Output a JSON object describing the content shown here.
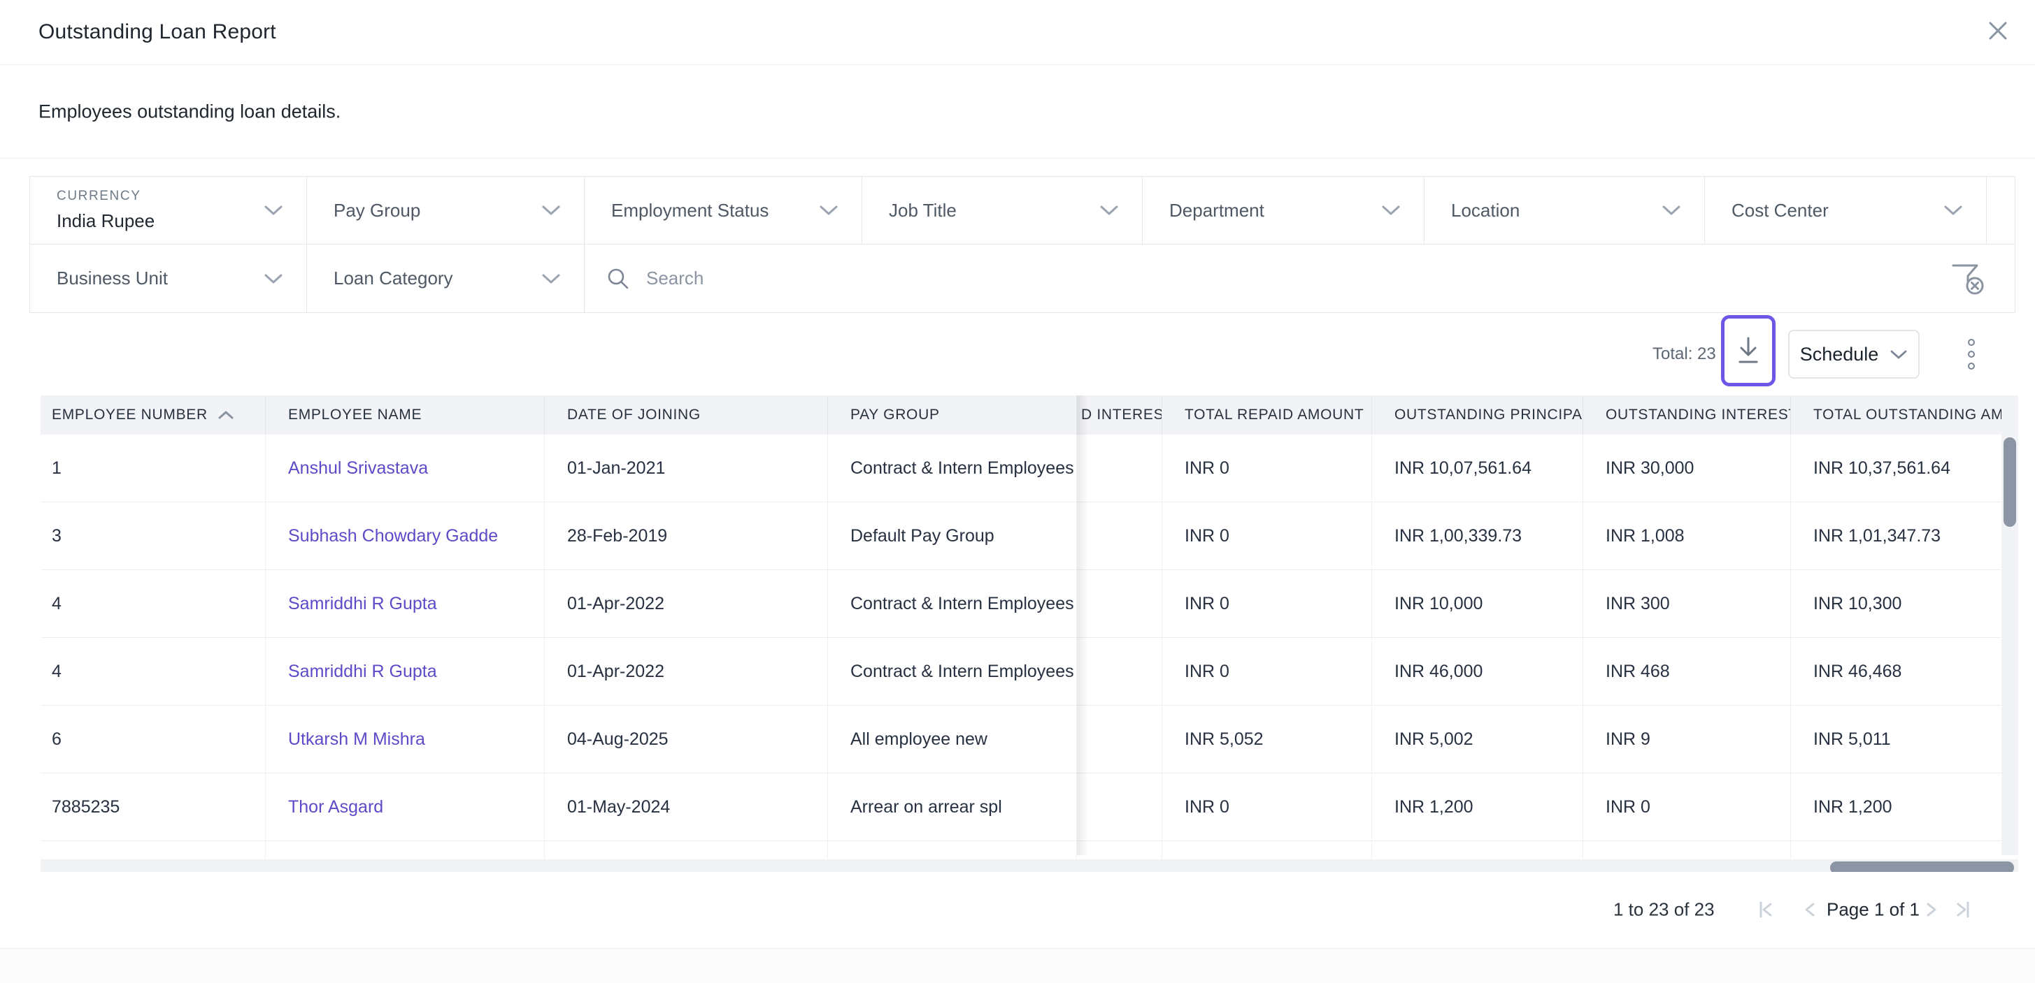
{
  "modal": {
    "title": "Outstanding Loan Report",
    "subtitle": "Employees outstanding loan details."
  },
  "filters": {
    "currency": {
      "label": "CURRENCY",
      "value": "India Rupee"
    },
    "row1": [
      "Pay Group",
      "Employment Status",
      "Job Title",
      "Department",
      "Location",
      "Cost Center"
    ],
    "row2": [
      "Business Unit",
      "Loan Category"
    ],
    "search": {
      "placeholder": "Search"
    }
  },
  "toolbar": {
    "total": "Total: 23",
    "schedule": "Schedule"
  },
  "table": {
    "columns": [
      {
        "label": "EMPLOYEE NUMBER",
        "sorted": "asc"
      },
      {
        "label": "EMPLOYEE NAME"
      },
      {
        "label": "DATE OF JOINING"
      },
      {
        "label": "PAY GROUP"
      },
      {
        "label": "D INTEREST"
      },
      {
        "label": "TOTAL REPAID AMOUNT"
      },
      {
        "label": "OUTSTANDING PRINCIPAL ."
      },
      {
        "label": "OUTSTANDING INTEREST A"
      },
      {
        "label": "TOTAL OUTSTANDING AMO"
      }
    ],
    "rows": [
      [
        "1",
        "Anshul Srivastava",
        "01-Jan-2021",
        "Contract & Intern Employees",
        "",
        "INR 0",
        "INR 10,07,561.64",
        "INR 30,000",
        "INR 10,37,561.64"
      ],
      [
        "3",
        "Subhash Chowdary Gadde",
        "28-Feb-2019",
        "Default Pay Group",
        "",
        "INR 0",
        "INR 1,00,339.73",
        "INR 1,008",
        "INR 1,01,347.73"
      ],
      [
        "4",
        "Samriddhi R Gupta",
        "01-Apr-2022",
        "Contract & Intern Employees",
        "",
        "INR 0",
        "INR 10,000",
        "INR 300",
        "INR 10,300"
      ],
      [
        "4",
        "Samriddhi R Gupta",
        "01-Apr-2022",
        "Contract & Intern Employees",
        "",
        "INR 0",
        "INR 46,000",
        "INR 468",
        "INR 46,468"
      ],
      [
        "6",
        "Utkarsh M Mishra",
        "04-Aug-2025",
        "All employee new",
        "",
        "INR 5,052",
        "INR 5,002",
        "INR 9",
        "INR 5,011"
      ],
      [
        "7885235",
        "Thor Asgard",
        "01-May-2024",
        "Arrear on arrear spl",
        "",
        "INR 0",
        "INR 1,200",
        "INR 0",
        "INR 1,200"
      ]
    ]
  },
  "footer": {
    "range": "1 to 23 of 23",
    "page": "Page 1 of 1"
  },
  "colors": {
    "accent": "#6C57E6",
    "link": "#5B4BC8",
    "header_bg": "#F2F3F6",
    "scroll_thumb": "#8C95A4"
  }
}
